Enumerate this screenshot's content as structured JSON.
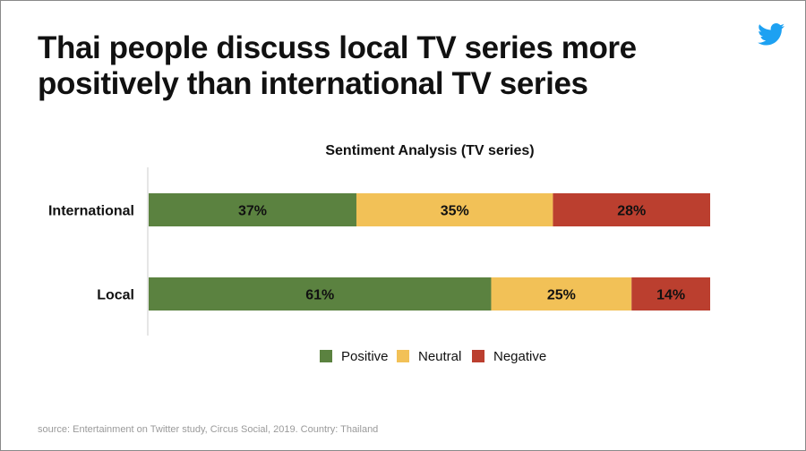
{
  "headline": {
    "line1": "Thai people discuss local TV series more",
    "line2": "positively than international TV series"
  },
  "icons": {
    "brand": "twitter-bird-icon"
  },
  "colors": {
    "Positive": "#5b8240",
    "Neutral": "#f2c157",
    "Negative": "#bb3f2f",
    "twitter": "#1da1f2",
    "axis": "#cccccc",
    "text": "#111111"
  },
  "chart_data": {
    "type": "bar",
    "orientation": "horizontal",
    "stacked": true,
    "title": "Sentiment Analysis (TV series)",
    "categories": [
      "International",
      "Local"
    ],
    "series": [
      {
        "name": "Positive",
        "values": [
          37,
          61
        ]
      },
      {
        "name": "Neutral",
        "values": [
          35,
          25
        ]
      },
      {
        "name": "Negative",
        "values": [
          28,
          14
        ]
      }
    ],
    "data_labels": [
      [
        "37%",
        "35%",
        "28%"
      ],
      [
        "61%",
        "25%",
        "14%"
      ]
    ],
    "xlim": [
      0,
      100
    ],
    "grid": false,
    "legend": "bottom-center"
  },
  "source": "source: Entertainment on Twitter study, Circus Social, 2019. Country: Thailand"
}
